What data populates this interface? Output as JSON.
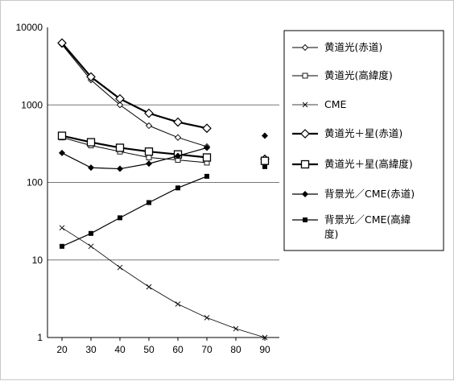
{
  "chart_data": {
    "type": "line",
    "title": "",
    "xlabel": "",
    "ylabel": "",
    "yscale": "log",
    "xlim": [
      15,
      95
    ],
    "ylim": [
      1,
      10000
    ],
    "x_ticks": [
      "20",
      "30",
      "40",
      "50",
      "60",
      "70",
      "80",
      "90"
    ],
    "y_ticks": [
      "1",
      "10",
      "100",
      "1000",
      "10000"
    ],
    "grid": "horizontal major lines",
    "legend_position": "right",
    "series": [
      {
        "name": "黄道光(赤道)",
        "marker": "diamond-open",
        "x": [
          20,
          30,
          40,
          50,
          60,
          70
        ],
        "y": [
          6000,
          2100,
          1000,
          540,
          380,
          290
        ]
      },
      {
        "name": "黄道光(高緯度)",
        "marker": "square-open",
        "x": [
          20,
          30,
          40,
          50,
          60,
          70
        ],
        "y": [
          380,
          300,
          250,
          210,
          195,
          180
        ]
      },
      {
        "name": "CME",
        "marker": "x",
        "x": [
          20,
          30,
          40,
          50,
          60,
          70,
          80,
          90
        ],
        "y": [
          26,
          15,
          8,
          4.5,
          2.7,
          1.8,
          1.3,
          1.0
        ]
      },
      {
        "name": "黄道光＋星(赤道)",
        "marker": "diamond-open-large",
        "x": [
          20,
          30,
          40,
          50,
          60,
          70
        ],
        "y": [
          6300,
          2300,
          1200,
          780,
          600,
          500
        ],
        "extra_points": [
          {
            "x": 90,
            "y": 200
          }
        ]
      },
      {
        "name": "黄道光＋星(高緯度)",
        "marker": "square-open-large",
        "x": [
          20,
          30,
          40,
          50,
          60,
          70
        ],
        "y": [
          400,
          330,
          280,
          250,
          230,
          210
        ],
        "extra_points": [
          {
            "x": 90,
            "y": 190
          }
        ]
      },
      {
        "name": "背景光／CME(赤道)",
        "marker": "diamond-filled",
        "x": [
          20,
          30,
          40,
          50,
          60,
          70
        ],
        "y": [
          240,
          155,
          150,
          175,
          220,
          280
        ],
        "extra_points": [
          {
            "x": 90,
            "y": 400
          }
        ]
      },
      {
        "name": "背景光／CME(高緯度)",
        "marker": "square-filled",
        "x": [
          20,
          30,
          40,
          50,
          60,
          70
        ],
        "y": [
          15,
          22,
          35,
          55,
          85,
          120
        ],
        "extra_points": [
          {
            "x": 90,
            "y": 160
          }
        ]
      }
    ]
  }
}
